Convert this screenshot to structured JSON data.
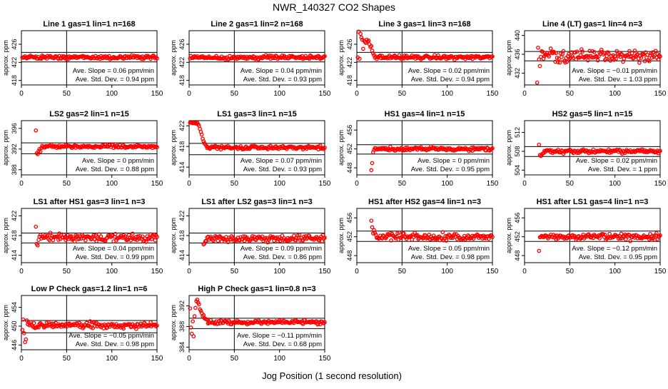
{
  "page": {
    "title": "NWR_140327   CO2 Shapes",
    "xlabel": "Jog Position (1 second resolution)",
    "ylabel": "approx. ppm",
    "slope_prefix": "Ave. Slope = ",
    "slope_unit": " ppm/min",
    "std_prefix": "Ave. Std. Dev. = ",
    "std_unit": " ppm"
  },
  "colors": {
    "points": "#ff0000",
    "axes": "#000000"
  },
  "chart_data": [
    {
      "type": "scatter",
      "title": "Line 1 gas=1 lin=1 n=168",
      "xlim": [
        0,
        150
      ],
      "ylim": [
        417,
        429
      ],
      "xticks": [
        0,
        50,
        100,
        150
      ],
      "yticks": [
        418,
        422,
        426
      ],
      "hlines": [
        424.2,
        422.1
      ],
      "vline": 50,
      "slope": "0.06",
      "std": "0.94",
      "profile": {
        "start": 1,
        "end": 150,
        "base": 423.1,
        "noise": 0.25
      }
    },
    {
      "type": "scatter",
      "title": "Line 2 gas=1 lin=2 n=168",
      "xlim": [
        0,
        150
      ],
      "ylim": [
        417,
        429
      ],
      "xticks": [
        0,
        50,
        100,
        150
      ],
      "yticks": [
        418,
        422,
        426
      ],
      "hlines": [
        424.2,
        422.1
      ],
      "vline": 50,
      "slope": "0.04",
      "std": "0.93",
      "profile": {
        "start": 1,
        "end": 150,
        "base": 423.1,
        "noise": 0.25
      }
    },
    {
      "type": "scatter",
      "title": "Line 3 gas=1 lin=3 n=168",
      "xlim": [
        0,
        150
      ],
      "ylim": [
        417,
        429
      ],
      "xticks": [
        0,
        50,
        100,
        150
      ],
      "yticks": [
        418,
        422,
        426
      ],
      "hlines": [
        424.2,
        422.1
      ],
      "vline": 50,
      "slope": "0.02",
      "std": "0.94",
      "profile": {
        "start": 1,
        "end": 150,
        "base": 423.1,
        "noise": 0.25,
        "spike": [
          [
            2,
            428.8
          ],
          [
            4,
            428.3
          ],
          [
            5,
            427.5
          ],
          [
            6,
            427.0
          ],
          [
            7,
            425.0
          ],
          [
            8,
            426.8
          ],
          [
            9,
            426.5
          ],
          [
            10,
            426.3
          ],
          [
            11,
            427.0
          ],
          [
            12,
            426.6
          ],
          [
            13,
            426.8
          ],
          [
            14,
            426.0
          ],
          [
            15,
            425.4
          ],
          [
            16,
            425.6
          ],
          [
            17,
            424.6
          ],
          [
            18,
            424.0
          ],
          [
            19,
            423.6
          ]
        ]
      }
    },
    {
      "type": "scatter",
      "title": "Line 4 (LT) gas=1 lin=4 n=3",
      "xlim": [
        0,
        150
      ],
      "ylim": [
        429.5,
        441
      ],
      "xticks": [
        0,
        50,
        100,
        150
      ],
      "yticks": [
        432,
        436,
        440
      ],
      "hlines": [
        436.6,
        434.6
      ],
      "vline": 50,
      "slope": "−0.01",
      "std": "1.03",
      "profile": {
        "start": 14,
        "end": 150,
        "base": 435.7,
        "noise": 0.8,
        "spike": [
          [
            14,
            430.0
          ],
          [
            15,
            437.4
          ],
          [
            16,
            434.9
          ],
          [
            17,
            433.5
          ]
        ]
      }
    },
    {
      "type": "scatter",
      "title": "LS2 gas=2 lin=1 n=15",
      "xlim": [
        0,
        150
      ],
      "ylim": [
        387,
        397.5
      ],
      "xticks": [
        0,
        50,
        100,
        150
      ],
      "yticks": [
        388,
        392,
        396
      ],
      "hlines": [
        393.2,
        391.1
      ],
      "vline": 50,
      "slope": "0",
      "std": "0.88",
      "profile": {
        "start": 16,
        "end": 150,
        "base": 392.5,
        "noise": 0.2,
        "spike": [
          [
            16,
            395.6
          ],
          [
            17,
            391.2
          ],
          [
            18,
            391.0
          ],
          [
            19,
            391.6
          ],
          [
            20,
            392.0
          ],
          [
            21,
            391.5
          ],
          [
            22,
            392.2
          ]
        ]
      }
    },
    {
      "type": "scatter",
      "title": "LS1 gas=3 lin=1 n=15",
      "xlim": [
        0,
        150
      ],
      "ylim": [
        412.5,
        423
      ],
      "xticks": [
        0,
        50,
        100,
        150
      ],
      "yticks": [
        414,
        418,
        422
      ],
      "hlines": [
        418.6,
        416.4
      ],
      "vline": 50,
      "slope": "0.07",
      "std": "0.93",
      "profile": {
        "start": 1,
        "end": 150,
        "base": 417.8,
        "noise": 0.2,
        "spike": [
          [
            1,
            422.6
          ],
          [
            2,
            422.6
          ],
          [
            3,
            422.6
          ],
          [
            4,
            422.5
          ],
          [
            5,
            422.6
          ],
          [
            6,
            422.5
          ],
          [
            7,
            422.6
          ],
          [
            8,
            422.4
          ],
          [
            9,
            422.6
          ],
          [
            10,
            422.3
          ],
          [
            11,
            422.0
          ],
          [
            12,
            421.4
          ],
          [
            13,
            420.8
          ],
          [
            14,
            420.3
          ],
          [
            15,
            419.5
          ],
          [
            16,
            419.0
          ],
          [
            17,
            418.6
          ],
          [
            18,
            418.4
          ],
          [
            19,
            418.1
          ]
        ]
      }
    },
    {
      "type": "scatter",
      "title": "HS1 gas=4 lin=1 n=15",
      "xlim": [
        0,
        150
      ],
      "ylim": [
        446.5,
        458
      ],
      "xticks": [
        0,
        50,
        100,
        150
      ],
      "yticks": [
        448,
        452,
        456
      ],
      "hlines": [
        452.9,
        450.9
      ],
      "vline": 50,
      "slope": "0",
      "std": "0.95",
      "profile": {
        "start": 16,
        "end": 150,
        "base": 452.0,
        "noise": 0.25,
        "spike": [
          [
            16,
            447.5
          ],
          [
            17,
            449.0
          ],
          [
            18,
            451.3
          ],
          [
            19,
            451.8
          ]
        ]
      }
    },
    {
      "type": "scatter",
      "title": "HS2 gas=5 lin=1 n=15",
      "xlim": [
        0,
        150
      ],
      "ylim": [
        503,
        514.5
      ],
      "xticks": [
        0,
        50,
        100,
        150
      ],
      "yticks": [
        504,
        508,
        512
      ],
      "hlines": [
        509.0,
        506.9
      ],
      "vline": 50,
      "slope": "0.02",
      "std": "1",
      "profile": {
        "start": 16,
        "end": 150,
        "base": 508.0,
        "noise": 0.25,
        "spike": [
          [
            16,
            509.4
          ],
          [
            17,
            507.2
          ],
          [
            18,
            507.0
          ],
          [
            19,
            507.3
          ],
          [
            20,
            507.5
          ],
          [
            21,
            507.6
          ]
        ]
      }
    },
    {
      "type": "scatter",
      "title": "LS1 after HS1 gas=3 lin=1 n=3",
      "xlim": [
        0,
        150
      ],
      "ylim": [
        412.5,
        423.5
      ],
      "xticks": [
        0,
        50,
        100,
        150
      ],
      "yticks": [
        414,
        418,
        422
      ],
      "hlines": [
        418.5,
        416.5
      ],
      "vline": 50,
      "slope": "0.04",
      "std": "0.99",
      "profile": {
        "start": 16,
        "end": 150,
        "base": 417.5,
        "noise": 0.5,
        "spike": [
          [
            16,
            419.8
          ],
          [
            17,
            416.3
          ],
          [
            18,
            416.0
          ]
        ]
      }
    },
    {
      "type": "scatter",
      "title": "LS1 after LS2 gas=3 lin=1 n=3",
      "xlim": [
        0,
        150
      ],
      "ylim": [
        412.5,
        423.5
      ],
      "xticks": [
        0,
        50,
        100,
        150
      ],
      "yticks": [
        414,
        418,
        422
      ],
      "hlines": [
        418.5,
        416.5
      ],
      "vline": 50,
      "slope": "0.09",
      "std": "0.86",
      "profile": {
        "start": 16,
        "end": 150,
        "base": 417.4,
        "noise": 0.45,
        "spike": [
          [
            16,
            416.2
          ],
          [
            17,
            416.4
          ]
        ]
      }
    },
    {
      "type": "scatter",
      "title": "HS1 after HS2 gas=4 lin=1 n=3",
      "xlim": [
        0,
        150
      ],
      "ylim": [
        446.5,
        458
      ],
      "xticks": [
        0,
        50,
        100,
        150
      ],
      "yticks": [
        448,
        452,
        456
      ],
      "hlines": [
        453.2,
        451.0
      ],
      "vline": 50,
      "slope": "0.05",
      "std": "0.98",
      "profile": {
        "start": 16,
        "end": 150,
        "base": 452.0,
        "noise": 0.45,
        "spike": [
          [
            16,
            455.4
          ],
          [
            17,
            454.0
          ],
          [
            18,
            452.7
          ],
          [
            19,
            453.4
          ],
          [
            20,
            452.8
          ]
        ]
      }
    },
    {
      "type": "scatter",
      "title": "HS1 after LS1 gas=4 lin=1 n=3",
      "xlim": [
        0,
        150
      ],
      "ylim": [
        446.5,
        458
      ],
      "xticks": [
        0,
        50,
        100,
        150
      ],
      "yticks": [
        448,
        452,
        456
      ],
      "hlines": [
        453.2,
        451.0
      ],
      "vline": 50,
      "slope": "−0.12",
      "std": "0.95",
      "profile": {
        "start": 16,
        "end": 150,
        "base": 452.0,
        "noise": 0.45,
        "spike": [
          [
            16,
            449.0
          ],
          [
            17,
            451.9
          ],
          [
            18,
            452.0
          ]
        ]
      }
    },
    {
      "type": "scatter",
      "title": "Low P Check gas=1.2 lin=1 n=6",
      "xlim": [
        0,
        150
      ],
      "ylim": [
        445,
        456.5
      ],
      "xticks": [
        0,
        50,
        100,
        150
      ],
      "yticks": [
        446,
        450,
        454
      ],
      "hlines": [
        451.2,
        448.6
      ],
      "vline": 50,
      "slope": "−0.05",
      "std": "0.98",
      "profile": {
        "start": 1,
        "end": 150,
        "base": 450.2,
        "noise": 0.4,
        "spike": [
          [
            1,
            449.2
          ],
          [
            2,
            451.4
          ],
          [
            3,
            448.5
          ],
          [
            4,
            446.6
          ],
          [
            5,
            447.2
          ],
          [
            6,
            451.2
          ],
          [
            7,
            450.4
          ],
          [
            8,
            450.8
          ]
        ]
      }
    },
    {
      "type": "scatter",
      "title": "High P Check gas=1 lin=0.8 n=3",
      "xlim": [
        0,
        150
      ],
      "ylim": [
        383.5,
        394
      ],
      "xticks": [
        0,
        50,
        100,
        150
      ],
      "yticks": [
        384,
        388,
        392
      ],
      "hlines": [
        389.6,
        387.6
      ],
      "vline": 50,
      "slope": "−0.11",
      "std": "0.68",
      "profile": {
        "start": 1,
        "end": 150,
        "base": 388.8,
        "noise": 0.25,
        "spike": [
          [
            1,
            391.5
          ],
          [
            2,
            387.8
          ],
          [
            3,
            386.6
          ],
          [
            4,
            389.0
          ],
          [
            5,
            386.1
          ],
          [
            6,
            390.0
          ],
          [
            7,
            391.6
          ],
          [
            8,
            392.9
          ],
          [
            9,
            393.2
          ],
          [
            10,
            392.6
          ],
          [
            11,
            392.3
          ],
          [
            12,
            391.3
          ],
          [
            13,
            391.0
          ],
          [
            14,
            390.6
          ],
          [
            15,
            390.0
          ],
          [
            16,
            390.2
          ],
          [
            17,
            389.6
          ],
          [
            18,
            389.5
          ],
          [
            19,
            389.4
          ],
          [
            20,
            389.3
          ]
        ]
      }
    }
  ]
}
